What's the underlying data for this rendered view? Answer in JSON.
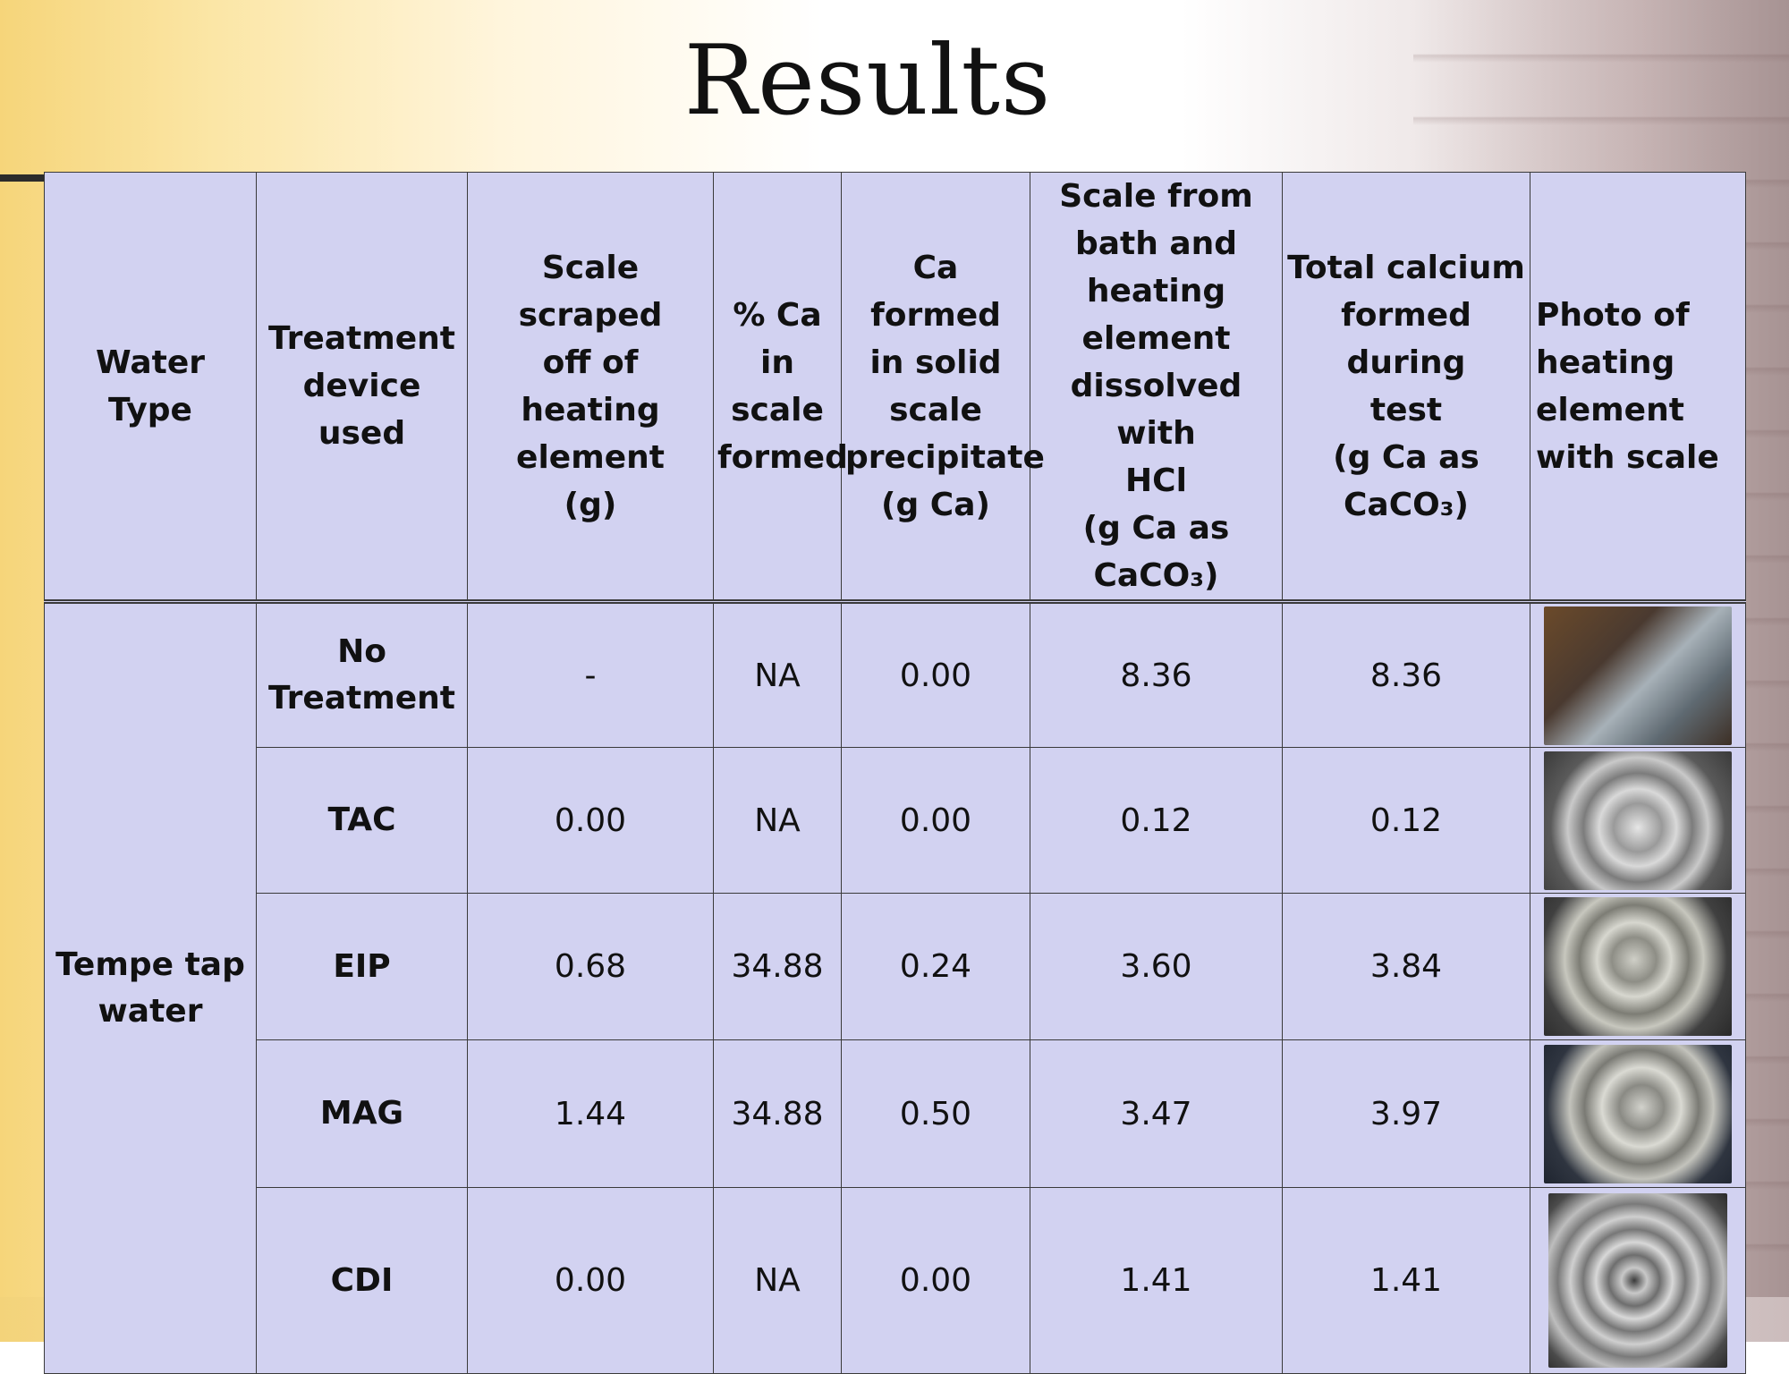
{
  "slide": {
    "title": "Results"
  },
  "table": {
    "headers": {
      "water_type": "Water Type",
      "treatment": [
        "Treatment",
        "device used"
      ],
      "scale_scraped": [
        "Scale scraped",
        "off of heating",
        "element",
        "(g)"
      ],
      "pct_ca": [
        "% Ca in",
        "scale",
        "formed"
      ],
      "ca_formed": [
        "Ca formed",
        "in solid",
        "scale",
        "precipitate",
        "(g Ca)"
      ],
      "scale_dissolved": [
        "Scale from",
        "bath and",
        "heating",
        "element",
        "dissolved with",
        "HCl",
        "(g Ca as CaCO₃)"
      ],
      "total_calcium": [
        "Total calcium",
        "formed during",
        "test",
        "(g Ca as",
        "CaCO₃)"
      ],
      "photo": [
        "Photo of",
        "heating",
        "element",
        "with scale"
      ]
    },
    "water_type_value": [
      "Tempe tap",
      "water"
    ],
    "rows": [
      {
        "treatment": [
          "No",
          "Treatment"
        ],
        "scale_scraped": "-",
        "pct_ca": "NA",
        "ca_formed": "0.00",
        "scale_dissolved": "8.36",
        "total_calcium": "8.36",
        "photo_desc": "heating-element-photo"
      },
      {
        "treatment": [
          "TAC"
        ],
        "scale_scraped": "0.00",
        "pct_ca": "NA",
        "ca_formed": "0.00",
        "scale_dissolved": "0.12",
        "total_calcium": "0.12",
        "photo_desc": "heating-element-photo"
      },
      {
        "treatment": [
          "EIP"
        ],
        "scale_scraped": "0.68",
        "pct_ca": "34.88",
        "ca_formed": "0.24",
        "scale_dissolved": "3.60",
        "total_calcium": "3.84",
        "photo_desc": "heating-element-photo"
      },
      {
        "treatment": [
          "MAG"
        ],
        "scale_scraped": "1.44",
        "pct_ca": "34.88",
        "ca_formed": "0.50",
        "scale_dissolved": "3.47",
        "total_calcium": "3.97",
        "photo_desc": "heating-element-photo"
      },
      {
        "treatment": [
          "CDI"
        ],
        "scale_scraped": "0.00",
        "pct_ca": "NA",
        "ca_formed": "0.00",
        "scale_dissolved": "1.41",
        "total_calcium": "1.41",
        "photo_desc": "heating-element-photo"
      }
    ]
  },
  "colors": {
    "table_fill": "#d2d2f1",
    "border": "#3a3a3a"
  }
}
